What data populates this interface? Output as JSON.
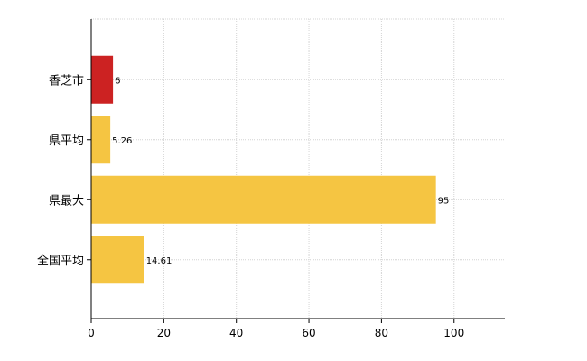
{
  "chart_data": {
    "type": "bar",
    "orientation": "horizontal",
    "categories": [
      "香芝市",
      "県平均",
      "県最大",
      "全国平均"
    ],
    "values": [
      6,
      5.26,
      95,
      14.61
    ],
    "value_labels": [
      "6",
      "5.26",
      "95",
      "14.61"
    ],
    "bar_colors": [
      "#cc2222",
      "#f5c542",
      "#f5c542",
      "#f5c542"
    ],
    "xlim": [
      0,
      114
    ],
    "x_ticks": [
      0,
      20,
      40,
      60,
      80,
      100
    ],
    "x_tick_labels": [
      "0",
      "20",
      "40",
      "60",
      "80",
      "100"
    ],
    "grid": true,
    "title": "",
    "xlabel": "",
    "ylabel": ""
  }
}
